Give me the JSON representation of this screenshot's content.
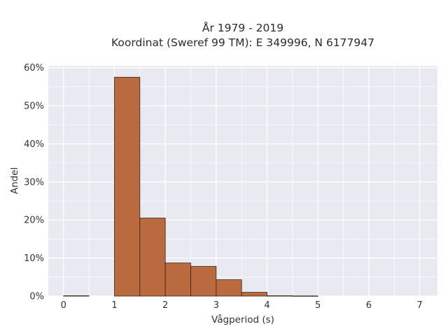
{
  "title": {
    "line1": "År 1979 - 2019",
    "line2": "Koordinat (Sweref 99 TM): E 349996, N 6177947"
  },
  "chart_data": {
    "type": "bar",
    "xlabel": "Vågperiod (s)",
    "ylabel": "Andel",
    "xlim": [
      -0.3,
      7.35
    ],
    "ylim": [
      0,
      0.605
    ],
    "x_ticks": [
      0,
      1,
      2,
      3,
      4,
      5,
      6,
      7
    ],
    "x_tick_labels": [
      "0",
      "1",
      "2",
      "3",
      "4",
      "5",
      "6",
      "7"
    ],
    "y_ticks": [
      0,
      0.1,
      0.2,
      0.3,
      0.4,
      0.5,
      0.6
    ],
    "y_tick_labels": [
      "0%",
      "10%",
      "20%",
      "30%",
      "40%",
      "50%",
      "60%"
    ],
    "grid": true,
    "bin_width": 0.5,
    "bins": [
      {
        "x0": 0.0,
        "x1": 0.5,
        "value": 0.001
      },
      {
        "x0": 1.0,
        "x1": 1.5,
        "value": 0.575
      },
      {
        "x0": 1.5,
        "x1": 2.0,
        "value": 0.205
      },
      {
        "x0": 2.0,
        "x1": 2.5,
        "value": 0.087
      },
      {
        "x0": 2.5,
        "x1": 3.0,
        "value": 0.078
      },
      {
        "x0": 3.0,
        "x1": 3.5,
        "value": 0.043
      },
      {
        "x0": 3.5,
        "x1": 4.0,
        "value": 0.01
      },
      {
        "x0": 4.0,
        "x1": 4.5,
        "value": 0.001
      },
      {
        "x0": 4.5,
        "x1": 5.0,
        "value": 0.0005
      }
    ],
    "colors": {
      "bar_fill": "#b96a3f",
      "bar_stroke": "#3a2418",
      "plot_background": "#e9e9f1",
      "grid": "#ffffff"
    }
  }
}
